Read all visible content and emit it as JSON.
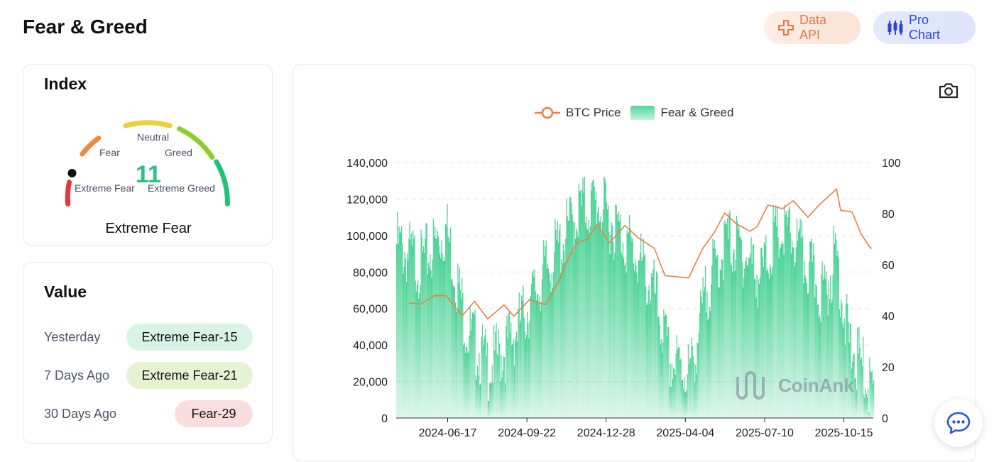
{
  "header": {
    "title": "Fear & Greed",
    "data_api_label": "Data API",
    "pro_chart_label": "Pro Chart"
  },
  "index_card": {
    "title": "Index",
    "value": "11",
    "state": "Extreme Fear",
    "labels": {
      "neutral": "Neutral",
      "fear": "Fear",
      "greed": "Greed",
      "extreme_fear": "Extreme Fear",
      "extreme_greed": "Extreme Greed"
    },
    "segment_colors": [
      "#e5383b",
      "#ee8a3e",
      "#ead03b",
      "#8ccf2b",
      "#22c27a"
    ]
  },
  "value_card": {
    "title": "Value",
    "rows": [
      {
        "label": "Yesterday",
        "value": "Extreme Fear-15",
        "color": "#d9f4e6"
      },
      {
        "label": "7 Days Ago",
        "value": "Extreme Fear-21",
        "color": "#e6f3d3"
      },
      {
        "label": "30 Days Ago",
        "value": "Fear-29",
        "color": "#fadddd"
      }
    ]
  },
  "chart": {
    "icons": {
      "camera": "camera-icon",
      "chat": "chat-icon"
    },
    "watermark": "CoinAnk"
  },
  "chart_data": {
    "type": "bar",
    "legend": [
      "BTC Price",
      "Fear & Greed"
    ],
    "legend_position": "top-center",
    "grid": true,
    "x_ticks": [
      "2024-06-17",
      "2024-09-22",
      "2024-12-28",
      "2025-04-04",
      "2025-07-10",
      "2025-10-15"
    ],
    "y_left_ticks": [
      "0",
      "20,000",
      "40,000",
      "60,000",
      "80,000",
      "100,000",
      "120,000",
      "140,000"
    ],
    "y_left_range": [
      0,
      140000
    ],
    "y_right_ticks": [
      "0",
      "20",
      "40",
      "60",
      "80",
      "100"
    ],
    "y_right_range": [
      0,
      100
    ],
    "series": [
      {
        "name": "BTC Price",
        "kind": "line",
        "axis": "left",
        "color": "#ef7d43",
        "x": [
          "2024-05-01",
          "2024-05-15",
          "2024-06-01",
          "2024-06-15",
          "2024-07-05",
          "2024-07-20",
          "2024-08-05",
          "2024-08-25",
          "2024-09-06",
          "2024-09-25",
          "2024-10-15",
          "2024-10-30",
          "2024-11-12",
          "2024-11-22",
          "2024-12-05",
          "2024-12-17",
          "2025-01-01",
          "2025-01-20",
          "2025-02-05",
          "2025-02-25",
          "2025-03-10",
          "2025-04-08",
          "2025-04-25",
          "2025-05-10",
          "2025-05-22",
          "2025-06-05",
          "2025-06-22",
          "2025-07-01",
          "2025-07-14",
          "2025-08-01",
          "2025-08-14",
          "2025-09-01",
          "2025-09-15",
          "2025-10-06",
          "2025-10-11",
          "2025-10-25",
          "2025-11-05",
          "2025-11-15",
          "2025-11-18"
        ],
        "values": [
          63000,
          60000,
          67000,
          66000,
          57000,
          64000,
          55000,
          64000,
          54000,
          64000,
          62000,
          72000,
          88000,
          98000,
          100000,
          106000,
          94000,
          104000,
          98000,
          92000,
          80000,
          77000,
          94000,
          104000,
          111000,
          104000,
          101000,
          107000,
          118000,
          115000,
          121000,
          109000,
          116000,
          124000,
          112000,
          113000,
          103000,
          96000,
          93000
        ]
      },
      {
        "name": "Fear & Greed",
        "kind": "bar",
        "axis": "right",
        "color": "#3fcf8e",
        "x": [
          "2024-04-15",
          "2024-05-15",
          "2024-06-15",
          "2024-07-10",
          "2024-08-05",
          "2024-08-25",
          "2024-09-15",
          "2024-10-15",
          "2024-11-05",
          "2024-11-25",
          "2024-12-17",
          "2025-01-15",
          "2025-02-05",
          "2025-02-25",
          "2025-03-15",
          "2025-04-10",
          "2025-05-01",
          "2025-05-25",
          "2025-06-15",
          "2025-07-05",
          "2025-07-20",
          "2025-08-10",
          "2025-08-30",
          "2025-09-20",
          "2025-10-05",
          "2025-10-20",
          "2025-11-05",
          "2025-11-20"
        ],
        "values": [
          68,
          60,
          74,
          35,
          20,
          27,
          38,
          58,
          70,
          82,
          84,
          72,
          62,
          48,
          22,
          18,
          52,
          70,
          64,
          55,
          70,
          72,
          60,
          48,
          65,
          30,
          20,
          11
        ]
      }
    ]
  }
}
